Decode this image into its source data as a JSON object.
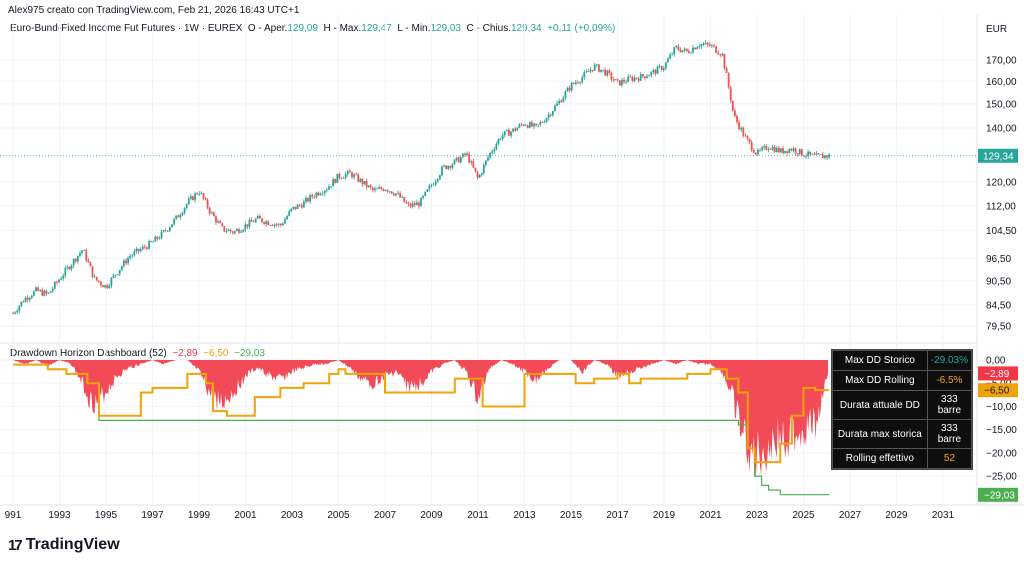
{
  "header": {
    "text": "Alex975 creato con TradingView.com, Feb 21, 2026 16:43 UTC+1"
  },
  "legend": {
    "symbol": "Euro-Bund-Fixed Income Fut Futures · 1W · EUREX",
    "o_label": "O - Aper.",
    "o": "129,09",
    "h_label": "H - Max.",
    "h": "129,47",
    "l_label": "L - Min.",
    "l": "129,03",
    "c_label": "C - Chius.",
    "c": "129,34",
    "chg": "+0,11 (+0,09%)"
  },
  "unit": "EUR",
  "price_label": "129,34",
  "indicator": {
    "name": "Drawdown Horizon Dashboard (52)",
    "v1": "−2,89",
    "v2": "−6,50",
    "v3": "−29,03"
  },
  "dd_labels": {
    "red": "−2,89",
    "orange": "−6,50",
    "green": "−29,03"
  },
  "dashboard": [
    {
      "key": "Max DD Storico",
      "value": "-29.03%",
      "color": "#26a69a"
    },
    {
      "key": "Max DD Rolling",
      "value": "-6.5%",
      "color": "#f5a623"
    },
    {
      "key": "Durata attuale DD",
      "value": "333 barre",
      "color": "#ffffff"
    },
    {
      "key": "Durata max storica",
      "value": "333 barre",
      "color": "#ffffff"
    },
    {
      "key": "Rolling effettivo",
      "value": "52",
      "color": "#f5a623"
    }
  ],
  "colors": {
    "up": "#26a69a",
    "down": "#ef5350",
    "red_area": "#f23645",
    "orange": "#f0a30a",
    "green": "#4caf50"
  },
  "footer": {
    "brand": "TradingView"
  },
  "chart_data": [
    {
      "type": "candlestick",
      "title": "Euro-Bund-Fixed Income Fut Futures · 1W · EUREX",
      "ylabel": "EUR",
      "ylim": [
        76,
        180
      ],
      "y_scale": "log",
      "x_ticks": [
        "991",
        "1993",
        "1995",
        "1997",
        "1999",
        "2001",
        "2003",
        "2005",
        "2007",
        "2009",
        "2011",
        "2013",
        "2015",
        "2017",
        "2019",
        "2021",
        "2023",
        "2025",
        "2027",
        "2029",
        "2031"
      ],
      "y_ticks": [
        "170,00",
        "160,00",
        "150,00",
        "140,00",
        "120,00",
        "112,00",
        "104,50",
        "96,50",
        "90,50",
        "84,50",
        "79,50"
      ],
      "series": [
        {
          "x": [
            1991.0,
            1991.5,
            1992.0,
            1992.5,
            1993.0,
            1993.5,
            1994.0,
            1994.5,
            1995.0,
            1995.5,
            1996.0,
            1996.5,
            1997.0,
            1997.5,
            1998.0,
            1998.5,
            1999.0,
            1999.5,
            2000.0,
            2000.5,
            2001.0,
            2001.5,
            2002.0,
            2002.5,
            2003.0,
            2003.5,
            2004.0,
            2004.5,
            2005.0,
            2005.5,
            2006.0,
            2006.5,
            2007.0,
            2007.5,
            2008.0,
            2008.5,
            2009.0,
            2009.5,
            2010.0,
            2010.5,
            2011.0,
            2011.5,
            2012.0,
            2012.5,
            2013.0,
            2013.5,
            2014.0,
            2014.5,
            2015.0,
            2015.5,
            2016.0,
            2016.5,
            2017.0,
            2017.5,
            2018.0,
            2018.5,
            2019.0,
            2019.5,
            2020.0,
            2020.5,
            2021.0,
            2021.5,
            2022.0,
            2022.5,
            2023.0,
            2023.5,
            2024.0,
            2024.5,
            2025.0,
            2025.5,
            2026.1
          ],
          "y": [
            82.5,
            86,
            88,
            87,
            91,
            95,
            99,
            91,
            89,
            93,
            97,
            99,
            101,
            104,
            108,
            113,
            117,
            110,
            105,
            104,
            106,
            108,
            107,
            106,
            111,
            113,
            116,
            118,
            122,
            123,
            120,
            117,
            118,
            116,
            112,
            113,
            119,
            125,
            127,
            130,
            121,
            130,
            137,
            139,
            142,
            140,
            145,
            151,
            158,
            162,
            167,
            164,
            159,
            161,
            162,
            164,
            167,
            176,
            174,
            178,
            177,
            173,
            145,
            136,
            130,
            133,
            131,
            132,
            130,
            129,
            129.34
          ]
        }
      ]
    },
    {
      "type": "area",
      "title": "Drawdown Horizon Dashboard (52)",
      "ylim": [
        -30,
        0
      ],
      "y_ticks": [
        "0,00",
        "−5,00",
        "−10,00",
        "−15,00",
        "−20,00",
        "−25,00"
      ],
      "series": [
        {
          "x": [
            1991.0,
            1991.5,
            1992.0,
            1992.5,
            1993.0,
            1993.5,
            1994.0,
            1994.3,
            1994.6,
            1995.0,
            1995.5,
            1996.0,
            1996.5,
            1997.0,
            1997.5,
            1998.0,
            1998.5,
            1999.0,
            1999.5,
            2000.0,
            2000.5,
            2001.0,
            2001.5,
            2002.0,
            2002.5,
            2003.0,
            2003.5,
            2004.0,
            2004.5,
            2005.0,
            2005.5,
            2006.0,
            2006.5,
            2007.0,
            2007.5,
            2008.0,
            2008.5,
            2009.0,
            2009.5,
            2010.0,
            2010.5,
            2011.0,
            2011.5,
            2012.0,
            2012.5,
            2013.0,
            2013.5,
            2014.0,
            2014.5,
            2015.0,
            2015.5,
            2016.0,
            2016.5,
            2017.0,
            2017.5,
            2018.0,
            2018.5,
            2019.0,
            2019.5,
            2020.0,
            2020.5,
            2021.0,
            2021.5,
            2022.0,
            2022.3,
            2022.6,
            2022.9,
            2023.3,
            2023.7,
            2024.0,
            2024.5,
            2025.0,
            2025.5,
            2026.1
          ],
          "y": [
            0,
            -1,
            0,
            -1.5,
            0,
            -1,
            -6,
            -10,
            -11,
            -8,
            -4,
            -2,
            -1,
            0,
            -1,
            0,
            0,
            -3,
            -9,
            -11,
            -8,
            -4,
            -2,
            -4,
            -5,
            -3,
            -2,
            -1,
            -1,
            0,
            -2,
            -5,
            -6,
            -4,
            -3,
            -7,
            -6,
            -3,
            -1,
            0,
            -3,
            -10,
            -2,
            0,
            -1,
            -3,
            -5,
            -2,
            0,
            0,
            -3,
            0,
            -1,
            -4,
            -3,
            -2,
            -1,
            0,
            -1,
            0,
            -1,
            -1,
            -3,
            -10,
            -18,
            -22,
            -25,
            -23,
            -21,
            -20,
            -19,
            -18,
            -16,
            -2.89
          ]
        },
        {
          "name": "",
          "x": [
            1991.0,
            1992.5,
            1993.3,
            1994.2,
            1994.7,
            1996.0,
            1996.5,
            1997.0,
            1998.5,
            1999.3,
            1999.6,
            2000.2,
            2001.0,
            2001.4,
            2002.5,
            2003.5,
            2004.6,
            2005.0,
            2005.3,
            2006.0,
            2007.0,
            2007.5,
            2008.0,
            2009.0,
            2010.0,
            2010.6,
            2011.2,
            2012.0,
            2013.0,
            2014.5,
            2015.2,
            2016.0,
            2017.0,
            2017.5,
            2018.0,
            2019.0,
            2020.0,
            2021.0,
            2021.7,
            2022.2,
            2022.6,
            2022.9,
            2023.5,
            2024.0,
            2024.5,
            2025.0,
            2025.5,
            2026.1
          ],
          "y": [
            -1,
            -2,
            -3,
            -5,
            -12,
            -12,
            -7,
            -6,
            -3,
            -5,
            -11,
            -12,
            -12,
            -8,
            -6,
            -5,
            -3,
            -2,
            -3,
            -3,
            -7,
            -7,
            -7,
            -7,
            -4,
            -4,
            -10,
            -10,
            -3,
            -3,
            -5,
            -4,
            -3,
            -5,
            -4,
            -4,
            -3,
            -2,
            -4,
            -7,
            -19,
            -22,
            -22,
            -18,
            -12,
            -6,
            -6.5,
            -6.5
          ]
        },
        {
          "name": "",
          "x": [
            1991.0,
            1992.5,
            1993.3,
            1994.2,
            1994.7,
            2000.0,
            2008.0,
            2021.7,
            2022.2,
            2022.6,
            2022.9,
            2023.2,
            2023.5,
            2024.0,
            2024.5,
            2025.0,
            2026.1
          ],
          "y": [
            -1,
            -2,
            -3,
            -5,
            -13,
            -13,
            -13,
            -13,
            -14,
            -19,
            -25,
            -27,
            -28,
            -29,
            -29,
            -29,
            -29.03
          ]
        }
      ]
    }
  ]
}
